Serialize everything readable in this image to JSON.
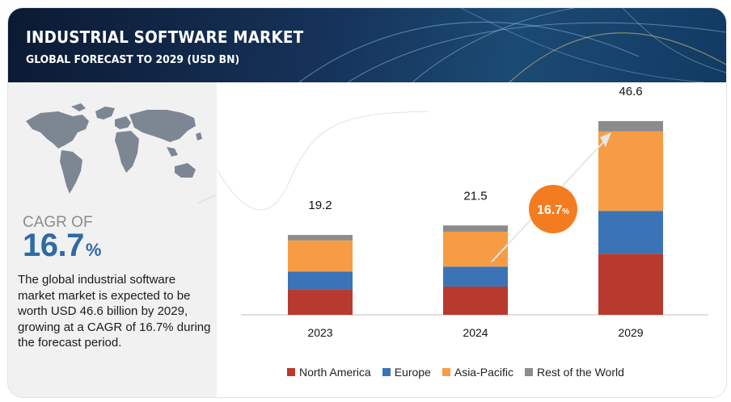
{
  "header": {
    "title": "INDUSTRIAL SOFTWARE MARKET",
    "subtitle": "GLOBAL FORECAST TO 2029 (USD BN)"
  },
  "left_panel": {
    "cagr_label": "CAGR OF",
    "cagr_value": "16.7",
    "cagr_unit": "%",
    "description": "The global industrial software market  market is expected to be worth USD 46.6 billion by 2029, growing at a CAGR of 16.7% during the forecast period."
  },
  "growth_badge": {
    "value": "16.7",
    "unit": "%"
  },
  "colors": {
    "north_america": "#b83a2f",
    "europe": "#3b74b6",
    "asia_pacific": "#f79c45",
    "rest_of_world": "#8c8c8c",
    "badge": "#f47c20"
  },
  "chart_data": {
    "type": "bar",
    "stacked": true,
    "categories": [
      "2023",
      "2024",
      "2029"
    ],
    "totals": [
      "19.2",
      "21.5",
      "46.6"
    ],
    "series": [
      {
        "name": "North America",
        "values": [
          6.1,
          6.8,
          14.7
        ]
      },
      {
        "name": "Europe",
        "values": [
          4.3,
          4.8,
          10.3
        ]
      },
      {
        "name": "Asia-Pacific",
        "values": [
          7.5,
          8.4,
          19.1
        ]
      },
      {
        "name": "Rest of the World",
        "values": [
          1.3,
          1.5,
          2.5
        ]
      }
    ],
    "ylim": [
      0,
      46.6
    ],
    "legend_position": "bottom"
  }
}
